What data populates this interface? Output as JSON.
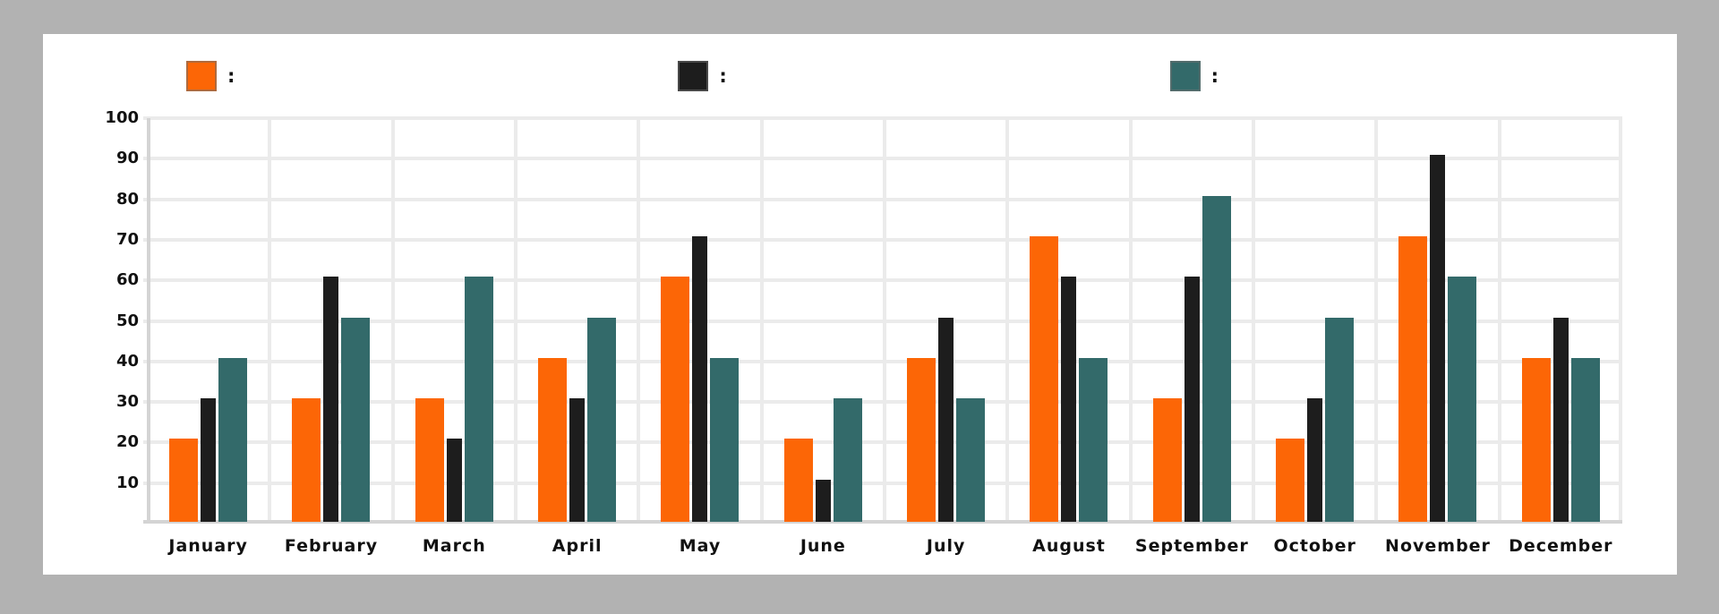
{
  "page": {
    "background_color": "#b2b2b2",
    "card_color": "#ffffff"
  },
  "legend": {
    "separator": ":",
    "items": [
      {
        "label": "",
        "color": "#fc6606"
      },
      {
        "label": "",
        "color": "#1d1d1d"
      },
      {
        "label": "",
        "color": "#336a6a"
      }
    ]
  },
  "chart_data": {
    "type": "bar",
    "title": "",
    "xlabel": "",
    "ylabel": "",
    "categories": [
      "January",
      "February",
      "March",
      "April",
      "May",
      "June",
      "July",
      "August",
      "September",
      "October",
      "November",
      "December"
    ],
    "series": [
      {
        "name": "",
        "color": "#fc6606",
        "values": [
          20,
          30,
          30,
          40,
          60,
          20,
          40,
          70,
          30,
          20,
          70,
          40
        ]
      },
      {
        "name": "",
        "color": "#1d1d1d",
        "values": [
          30,
          60,
          20,
          30,
          70,
          10,
          50,
          60,
          60,
          30,
          90,
          50
        ]
      },
      {
        "name": "",
        "color": "#336a6a",
        "values": [
          40,
          50,
          60,
          50,
          40,
          30,
          30,
          40,
          80,
          50,
          60,
          40
        ]
      }
    ],
    "ylim": [
      0,
      100
    ],
    "yticks": [
      10,
      20,
      30,
      40,
      50,
      60,
      70,
      80,
      90,
      100
    ],
    "grid": true,
    "legend_position": "top",
    "gridline_color": "#ebebeb",
    "axis_color": "#d4d4d4"
  }
}
